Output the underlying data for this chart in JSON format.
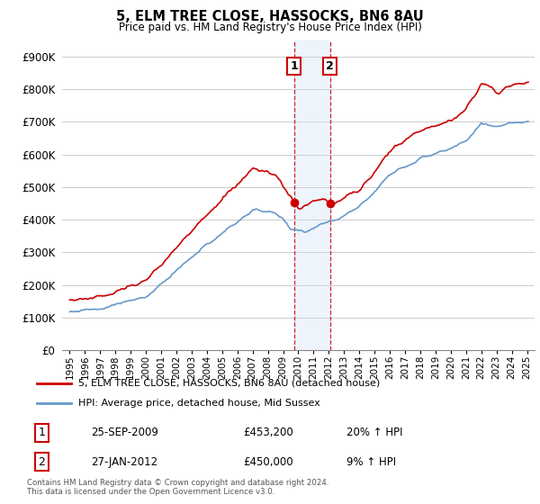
{
  "title": "5, ELM TREE CLOSE, HASSOCKS, BN6 8AU",
  "subtitle": "Price paid vs. HM Land Registry's House Price Index (HPI)",
  "footer": "Contains HM Land Registry data © Crown copyright and database right 2024.\nThis data is licensed under the Open Government Licence v3.0.",
  "legend_line1": "5, ELM TREE CLOSE, HASSOCKS, BN6 8AU (detached house)",
  "legend_line2": "HPI: Average price, detached house, Mid Sussex",
  "sale1_label": "1",
  "sale1_date": "25-SEP-2009",
  "sale1_price": "£453,200",
  "sale1_hpi": "20% ↑ HPI",
  "sale2_label": "2",
  "sale2_date": "27-JAN-2012",
  "sale2_price": "£450,000",
  "sale2_hpi": "9% ↑ HPI",
  "sale1_x": 2009.73,
  "sale1_y": 453200,
  "sale2_x": 2012.07,
  "sale2_y": 450000,
  "red_color": "#cc0000",
  "blue_color": "#6699cc",
  "shading_color": "#cce0f5",
  "ylim_min": 0,
  "ylim_max": 950000,
  "xlim_min": 1994.5,
  "xlim_max": 2025.5,
  "yticks": [
    0,
    100000,
    200000,
    300000,
    400000,
    500000,
    600000,
    700000,
    800000,
    900000
  ],
  "ytick_labels": [
    "£0",
    "£100K",
    "£200K",
    "£300K",
    "£400K",
    "£500K",
    "£600K",
    "£700K",
    "£800K",
    "£900K"
  ]
}
